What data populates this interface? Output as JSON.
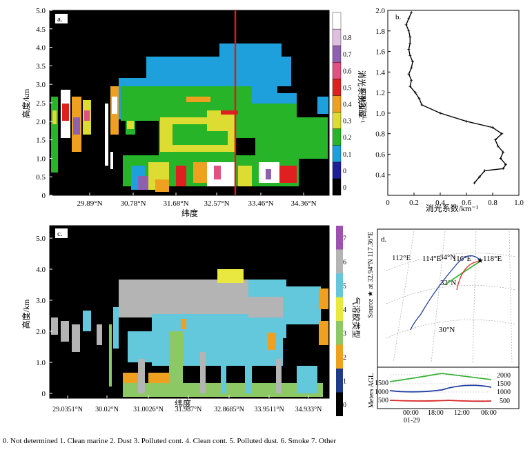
{
  "panel_a": {
    "label": "a.",
    "y_axis_label": "高度/km",
    "x_axis_label": "纬度",
    "y_ticks": [
      "0",
      "0.5",
      "1.0",
      "1.5",
      "2.0",
      "2.5",
      "3.0",
      "3.5",
      "4.0",
      "4.5",
      "5.0"
    ],
    "x_ticks": [
      "29.89°N",
      "30.78°N",
      "31.68°N",
      "32.57°N",
      "33.46°N",
      "34.36°N"
    ],
    "colorbar_label": "消光系数/km⁻¹",
    "colorbar_ticks": [
      "0",
      "0",
      "0.1",
      "0.2",
      "0.3",
      "0.4",
      "0.5",
      "0.6",
      "0.7",
      "0.8"
    ],
    "colorbar_colors": [
      "#000000",
      "#1e1e96",
      "#1ea0dc",
      "#28b428",
      "#dcdc32",
      "#f0a020",
      "#e02020",
      "#e05080",
      "#9060b0",
      "#e0c0e0",
      "#ffffff"
    ]
  },
  "panel_b": {
    "label": "b.",
    "chart_data": {
      "type": "line",
      "title": "",
      "xlabel": "消光系数/km⁻¹",
      "ylabel": "高度/km",
      "xlim": [
        0,
        1.0
      ],
      "ylim": [
        0.2,
        2.0
      ],
      "x_ticks": [
        "0",
        "0.2",
        "0.4",
        "0.6",
        "0.8",
        "1.0"
      ],
      "y_ticks": [
        "0.4",
        "0.6",
        "0.8",
        "1.0",
        "1.2",
        "1.4",
        "1.6",
        "1.8",
        "2.0"
      ],
      "series": [
        {
          "name": "extinction",
          "x": [
            0.66,
            0.7,
            0.74,
            0.88,
            0.9,
            0.86,
            0.88,
            0.84,
            0.82,
            0.87,
            0.8,
            0.6,
            0.4,
            0.26,
            0.24,
            0.21,
            0.17,
            0.18,
            0.16,
            0.18,
            0.19,
            0.17,
            0.16,
            0.17,
            0.17,
            0.16,
            0.14,
            0.16,
            0.18
          ],
          "y": [
            0.32,
            0.38,
            0.44,
            0.46,
            0.5,
            0.56,
            0.62,
            0.68,
            0.74,
            0.8,
            0.86,
            0.92,
            1.0,
            1.08,
            1.14,
            1.2,
            1.26,
            1.32,
            1.38,
            1.44,
            1.5,
            1.56,
            1.62,
            1.68,
            1.74,
            1.8,
            1.86,
            1.92,
            1.98
          ]
        }
      ]
    }
  },
  "panel_c": {
    "label": "c.",
    "y_axis_label": "高度/km",
    "x_axis_label": "纬度",
    "y_ticks": [
      "0",
      "1.0",
      "2.0",
      "3.0",
      "4.0",
      "5.0"
    ],
    "x_ticks": [
      "29.0351°N",
      "30.02°N",
      "31.0026°N",
      "31.987°N",
      "32.8685°N",
      "33.9511°N",
      "34.933°N"
    ],
    "colorbar_label": "气溶胶类型",
    "colorbar_ticks": [
      "0",
      "1",
      "2",
      "3",
      "4",
      "5",
      "6",
      "7"
    ],
    "colorbar_colors": [
      "#000000",
      "#1e3a8a",
      "#f0a020",
      "#8cc864",
      "#e8e840",
      "#64c8dc",
      "#b4b4b4",
      "#a050b0"
    ]
  },
  "panel_d": {
    "label": "d.",
    "lat_labels": [
      "34°N",
      "32°N",
      "30°N"
    ],
    "lon_labels": [
      "112°E",
      "114°E",
      "116°E",
      "118°E"
    ],
    "source_label": "Source ★ at 32.94°N 117.36°E",
    "y_axis_label": "Meters AGL",
    "height_ticks_left": [
      "1500",
      "1000",
      "500"
    ],
    "height_ticks_right": [
      "2000",
      "1500",
      "1000",
      "500"
    ],
    "time_labels": [
      "00:00",
      "18:00",
      "12:00",
      "06:00"
    ],
    "date_label": "01-29",
    "trajectory_colors": [
      "#3cb43c",
      "#1e3ca0",
      "#dc2828"
    ]
  },
  "legend_caption": "0. Not determined   1. Clean marine   2. Dust 3. Polluted cont. 4. Clean cont. 5. Polluted dust. 6. Smoke 7. Other"
}
